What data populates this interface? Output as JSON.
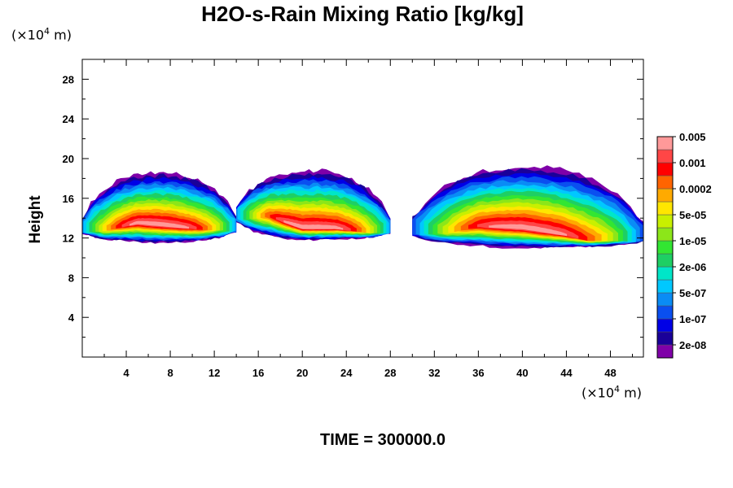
{
  "chart_data": {
    "type": "heatmap",
    "title": "H2O-s-Rain Mixing Ratio [kg/kg]",
    "ylabel": "Height",
    "xlabel": "",
    "x_unit_prefix": "(×10",
    "x_unit_exp": "4",
    "x_unit_suffix": " m)",
    "y_unit_prefix": "(×10",
    "y_unit_exp": "4",
    "y_unit_suffix": " m)",
    "xlim": [
      0,
      51
    ],
    "ylim": [
      0,
      30
    ],
    "x_ticks": [
      4,
      8,
      12,
      16,
      20,
      24,
      28,
      32,
      36,
      40,
      44,
      48
    ],
    "y_ticks": [
      4,
      8,
      12,
      16,
      20,
      24,
      28
    ],
    "colorbar": {
      "colors": [
        "#7f00a8",
        "#1a0099",
        "#0000e6",
        "#0a4ff0",
        "#0a8cf5",
        "#00c8ff",
        "#00e6c8",
        "#1ecf64",
        "#32e632",
        "#8ce619",
        "#c8f000",
        "#ffe600",
        "#ffaa00",
        "#ff6400",
        "#ff0000",
        "#ff4646",
        "#ff9999"
      ],
      "labels": [
        "2e-08",
        "1e-07",
        "5e-07",
        "2e-06",
        "1e-05",
        "5e-05",
        "0.0002",
        "0.001",
        "0.005"
      ]
    },
    "cells": [
      {
        "x_from": 0,
        "x_to": 14,
        "y_bottom": 11.5,
        "y_top": 18.6,
        "core": [
          [
            2,
            12.8
          ],
          [
            5,
            13.5
          ],
          [
            8,
            13.2
          ],
          [
            11,
            12.9
          ]
        ]
      },
      {
        "x_from": 14,
        "x_to": 28,
        "y_bottom": 11.8,
        "y_top": 18.8,
        "core": [
          [
            17,
            14.2
          ],
          [
            20,
            13.0
          ],
          [
            23,
            13.0
          ],
          [
            26,
            12.6
          ]
        ]
      },
      {
        "x_from": 30,
        "x_to": 51,
        "y_bottom": 11.0,
        "y_top": 19.2,
        "core": [
          [
            33,
            12.6
          ],
          [
            36,
            13.2
          ],
          [
            40,
            13.0
          ],
          [
            44,
            12.3
          ],
          [
            46,
            11.8
          ]
        ]
      }
    ]
  },
  "time_label": "TIME = 300000.0"
}
